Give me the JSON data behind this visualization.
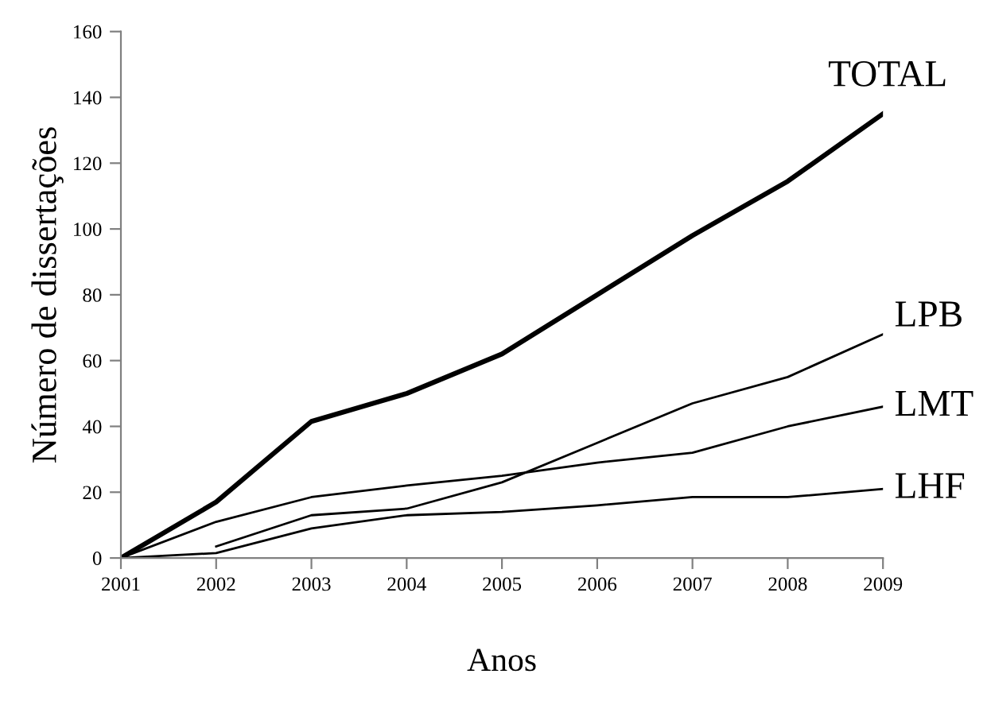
{
  "chart_data": {
    "type": "line",
    "xlabel": "Anos",
    "ylabel": "Número de dissertações",
    "categories": [
      "2001",
      "2002",
      "2003",
      "2004",
      "2005",
      "2006",
      "2007",
      "2008",
      "2009"
    ],
    "ylim": [
      0,
      160
    ],
    "yticks": [
      0,
      20,
      40,
      60,
      80,
      100,
      120,
      140,
      160
    ],
    "grid": false,
    "legend": false,
    "marker": "none",
    "line_style": "solid",
    "series": [
      {
        "name": "TOTAL",
        "color": "#000000",
        "values": [
          0,
          17,
          41.5,
          50,
          62,
          80,
          98,
          114.5,
          135
        ]
      },
      {
        "name": "LPB",
        "color": "#000000",
        "values": [
          null,
          3.5,
          13,
          15,
          23,
          35,
          47,
          55,
          68
        ]
      },
      {
        "name": "LMT",
        "color": "#000000",
        "values": [
          0,
          11,
          18.5,
          22,
          25,
          29,
          32,
          40,
          46
        ]
      },
      {
        "name": "LHF",
        "color": "#000000",
        "values": [
          0,
          1.5,
          9,
          13,
          14,
          16,
          18.5,
          18.5,
          21
        ]
      }
    ]
  }
}
